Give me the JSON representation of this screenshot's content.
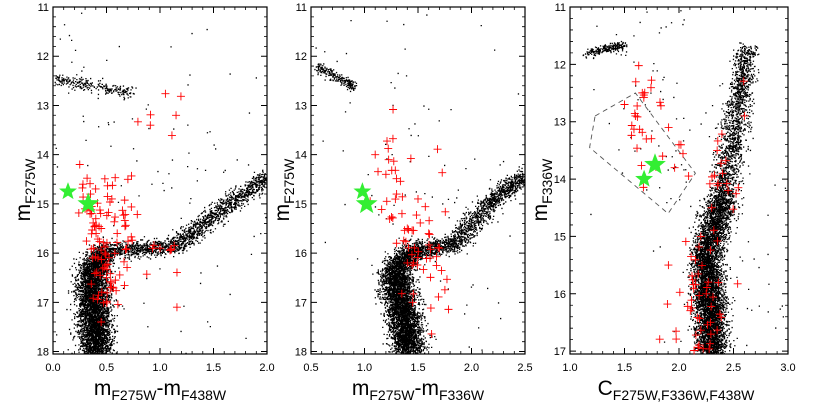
{
  "chart_data": [
    {
      "type": "scatter",
      "panel": "left",
      "xlabel_main": "m",
      "xlabel_sub1": "F275W",
      "xlabel_dash": "-m",
      "xlabel_sub2": "F438W",
      "ylabel_main": "m",
      "ylabel_sub": "F275W",
      "xlim": [
        0.0,
        2.0
      ],
      "ylim": [
        18.05,
        11.0
      ],
      "x_ticks": [
        0.0,
        0.5,
        1.0,
        1.5,
        2.0
      ],
      "x_tick_labels": [
        "0.0",
        "0.5",
        "1.0",
        "1.5",
        "2.0"
      ],
      "y_ticks": [
        11,
        12,
        13,
        14,
        15,
        16,
        17,
        18
      ],
      "y_tick_labels": [
        "11",
        "12",
        "13",
        "14",
        "15",
        "16",
        "17",
        "18"
      ],
      "series": [
        {
          "name": "stars",
          "color": "#000000",
          "marker": "dot",
          "description_points": [
            [
              0.4,
              17.9
            ],
            [
              0.38,
              17.0
            ],
            [
              0.36,
              16.4
            ],
            [
              0.45,
              16.0
            ],
            [
              0.8,
              15.95
            ],
            [
              1.1,
              15.85
            ],
            [
              1.3,
              15.5
            ],
            [
              1.5,
              15.2
            ],
            [
              1.8,
              14.8
            ],
            [
              1.95,
              14.5
            ],
            [
              0.05,
              12.45
            ],
            [
              0.5,
              12.6
            ],
            [
              0.75,
              12.75
            ]
          ]
        },
        {
          "name": "selected stars",
          "color": "#ff0000",
          "marker": "plus",
          "points": [
            [
              0.28,
              14.6
            ],
            [
              0.35,
              14.8
            ],
            [
              0.3,
              15.1
            ],
            [
              0.4,
              15.3
            ],
            [
              0.45,
              15.5
            ],
            [
              0.25,
              14.2
            ],
            [
              0.55,
              14.9
            ],
            [
              0.6,
              15.6
            ],
            [
              0.38,
              15.9
            ],
            [
              0.42,
              16.1
            ],
            [
              0.5,
              16.5
            ],
            [
              0.45,
              17.4
            ],
            [
              0.7,
              14.5
            ],
            [
              1.0,
              15.9
            ],
            [
              1.15,
              13.2
            ]
          ]
        },
        {
          "name": "highlighted stars",
          "color": "#33ee33",
          "marker": "star",
          "points": [
            [
              0.14,
              14.75
            ],
            [
              0.33,
              15.0
            ]
          ]
        }
      ]
    },
    {
      "type": "scatter",
      "panel": "middle",
      "xlabel_main": "m",
      "xlabel_sub1": "F275W",
      "xlabel_dash": "-m",
      "xlabel_sub2": "F336W",
      "ylabel_main": "m",
      "ylabel_sub": "F275W",
      "xlim": [
        0.5,
        2.5
      ],
      "ylim": [
        18.05,
        11.0
      ],
      "x_ticks": [
        0.5,
        1.0,
        1.5,
        2.0,
        2.5
      ],
      "x_tick_labels": [
        "0.5",
        "1.0",
        "1.5",
        "2.0",
        "2.5"
      ],
      "y_ticks": [
        11,
        12,
        13,
        14,
        15,
        16,
        17,
        18
      ],
      "y_tick_labels": [
        "11",
        "12",
        "13",
        "14",
        "15",
        "16",
        "17",
        "18"
      ],
      "series": [
        {
          "name": "stars",
          "color": "#000000",
          "marker": "dot",
          "description_points": [
            [
              1.4,
              17.9
            ],
            [
              1.35,
              17.0
            ],
            [
              1.3,
              16.4
            ],
            [
              1.4,
              16.0
            ],
            [
              1.7,
              16.0
            ],
            [
              1.9,
              15.6
            ],
            [
              2.1,
              15.0
            ],
            [
              2.3,
              14.6
            ],
            [
              0.6,
              12.2
            ],
            [
              0.85,
              12.5
            ]
          ]
        },
        {
          "name": "selected stars",
          "color": "#ff0000",
          "marker": "plus",
          "points": [
            [
              1.3,
              14.8
            ],
            [
              1.35,
              15.2
            ],
            [
              1.4,
              15.5
            ],
            [
              1.3,
              15.8
            ],
            [
              1.2,
              14.4
            ],
            [
              1.5,
              14.9
            ],
            [
              1.6,
              15.6
            ],
            [
              1.1,
              14.0
            ],
            [
              1.4,
              16.2
            ],
            [
              1.45,
              17.0
            ],
            [
              1.7,
              15.9
            ]
          ]
        },
        {
          "name": "highlighted stars",
          "color": "#33ee33",
          "marker": "star",
          "points": [
            [
              0.98,
              14.75
            ],
            [
              1.02,
              15.0
            ]
          ]
        }
      ]
    },
    {
      "type": "scatter",
      "panel": "right",
      "xlabel_main": "C",
      "xlabel_sub1": "F275W,F336W,F438W",
      "ylabel_main": "m",
      "ylabel_sub": "F336W",
      "xlim": [
        1.0,
        3.0
      ],
      "ylim": [
        17.05,
        11.0
      ],
      "x_ticks": [
        1.0,
        1.5,
        2.0,
        2.5,
        3.0
      ],
      "x_tick_labels": [
        "1.0",
        "1.5",
        "2.0",
        "2.5",
        "3.0"
      ],
      "y_ticks": [
        11,
        12,
        13,
        14,
        15,
        16,
        17
      ],
      "y_tick_labels": [
        "11",
        "12",
        "13",
        "14",
        "15",
        "16",
        "17"
      ],
      "series": [
        {
          "name": "stars",
          "color": "#000000",
          "marker": "dot",
          "description_points": [
            [
              2.3,
              16.9
            ],
            [
              2.25,
              16.0
            ],
            [
              2.2,
              15.2
            ],
            [
              2.35,
              14.5
            ],
            [
              2.45,
              13.5
            ],
            [
              2.55,
              12.5
            ],
            [
              2.6,
              11.9
            ],
            [
              1.2,
              11.75
            ],
            [
              1.45,
              11.7
            ]
          ]
        },
        {
          "name": "selected stars",
          "color": "#ff0000",
          "marker": "plus",
          "points": [
            [
              2.35,
              13.5
            ],
            [
              2.4,
              13.9
            ],
            [
              2.45,
              14.2
            ],
            [
              2.3,
              14.5
            ],
            [
              1.6,
              12.9
            ],
            [
              1.7,
              13.3
            ],
            [
              1.85,
              13.6
            ],
            [
              2.0,
              13.4
            ],
            [
              2.2,
              15.0
            ],
            [
              2.25,
              16.0
            ],
            [
              2.6,
              12.9
            ],
            [
              1.5,
              12.7
            ]
          ]
        },
        {
          "name": "highlighted stars",
          "color": "#33ee33",
          "marker": "star",
          "points": [
            [
              1.68,
              14.0
            ],
            [
              1.78,
              13.75
            ]
          ]
        },
        {
          "name": "selection region",
          "color": "#555555",
          "marker": "dashed-polygon",
          "points": [
            [
              1.23,
              12.9
            ],
            [
              1.6,
              12.5
            ],
            [
              2.15,
              13.9
            ],
            [
              1.9,
              14.6
            ],
            [
              1.18,
              13.45
            ]
          ]
        }
      ]
    }
  ]
}
